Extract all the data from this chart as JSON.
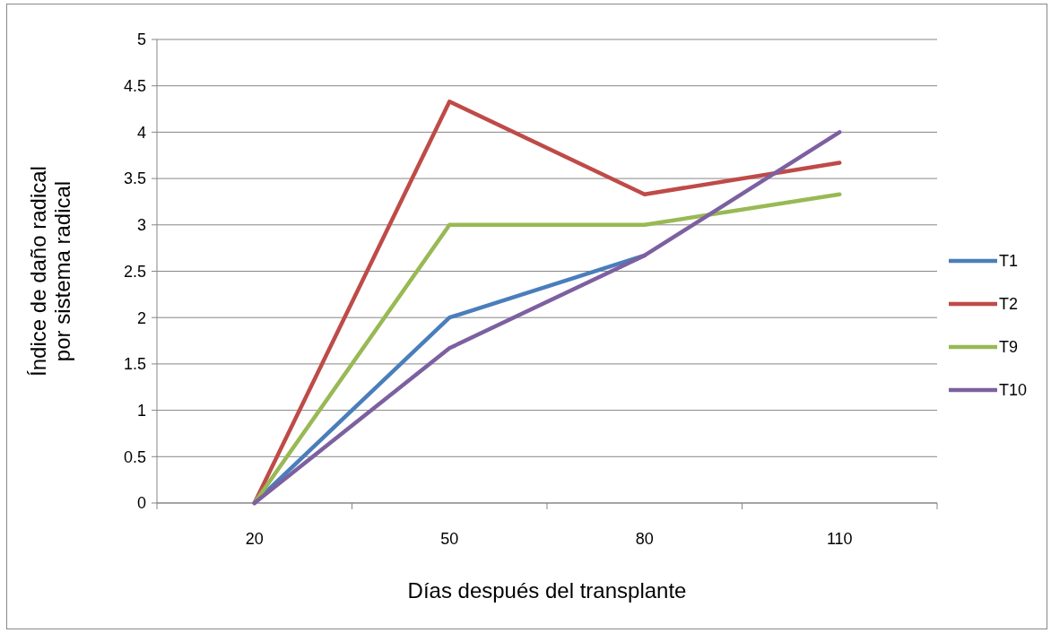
{
  "chart_data": {
    "type": "line",
    "xlabel": "Días después del transplante",
    "ylabel": "Índice de daño radical por sistema radical",
    "categories": [
      "20",
      "50",
      "80",
      "110"
    ],
    "series": [
      {
        "name": "T1",
        "color": "#4a7ebb",
        "values": [
          0,
          2,
          2.67,
          null
        ]
      },
      {
        "name": "T2",
        "color": "#be4b48",
        "values": [
          0,
          4.33,
          3.33,
          3.67
        ]
      },
      {
        "name": "T9",
        "color": "#98b954",
        "values": [
          0,
          3,
          3,
          3.33
        ]
      },
      {
        "name": "T10",
        "color": "#7d60a0",
        "values": [
          0,
          1.67,
          2.67,
          4
        ]
      }
    ],
    "ylim": [
      0,
      5
    ],
    "yticks": [
      0,
      0.5,
      1,
      1.5,
      2,
      2.5,
      3,
      3.5,
      4,
      4.5,
      5
    ],
    "grid": "y",
    "legend": "right",
    "marker": "none",
    "line_style": "solid"
  }
}
